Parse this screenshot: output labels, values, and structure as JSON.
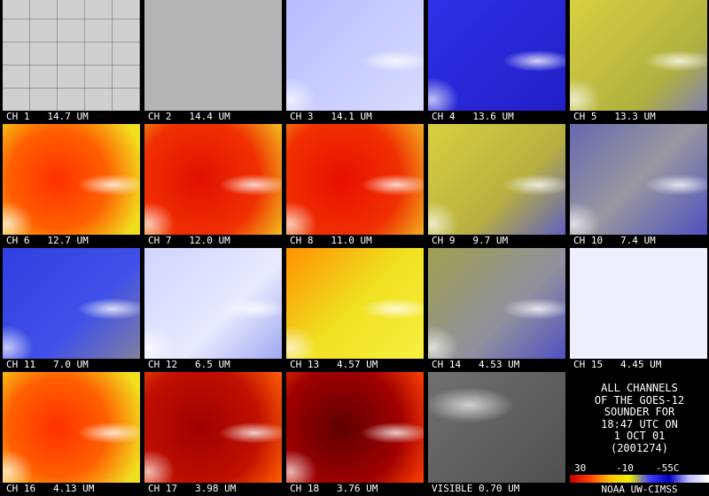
{
  "panels": [
    {
      "label": "CH 1   14.7 UM"
    },
    {
      "label": "CH 2   14.4 UM"
    },
    {
      "label": "CH 3   14.1 UM"
    },
    {
      "label": "CH 4   13.6 UM"
    },
    {
      "label": "CH 5   13.3 UM"
    },
    {
      "label": "CH 6   12.7 UM"
    },
    {
      "label": "CH 7   12.0 UM"
    },
    {
      "label": "CH 8   11.0 UM"
    },
    {
      "label": "CH 9   9.7 UM"
    },
    {
      "label": "CH 10   7.4 UM"
    },
    {
      "label": "CH 11   7.0 UM"
    },
    {
      "label": "CH 12   6.5 UM"
    },
    {
      "label": "CH 13   4.57 UM"
    },
    {
      "label": "CH 14   4.53 UM"
    },
    {
      "label": "CH 15   4.45 UM"
    },
    {
      "label": "CH 16   4.13 UM"
    },
    {
      "label": "CH 17   3.98 UM"
    },
    {
      "label": "CH 18   3.76 UM"
    },
    {
      "label": "VISIBLE 0.70 UM"
    }
  ],
  "summary": {
    "lines": [
      "ALL CHANNELS",
      "OF THE GOES-12",
      "SOUNDER FOR",
      "18:47 UTC ON",
      "1 OCT 01",
      "(2001274)"
    ]
  },
  "scale": {
    "labels": [
      "30",
      "-10",
      "-55C"
    ]
  },
  "credit": "NOAA UW-CIMSS"
}
